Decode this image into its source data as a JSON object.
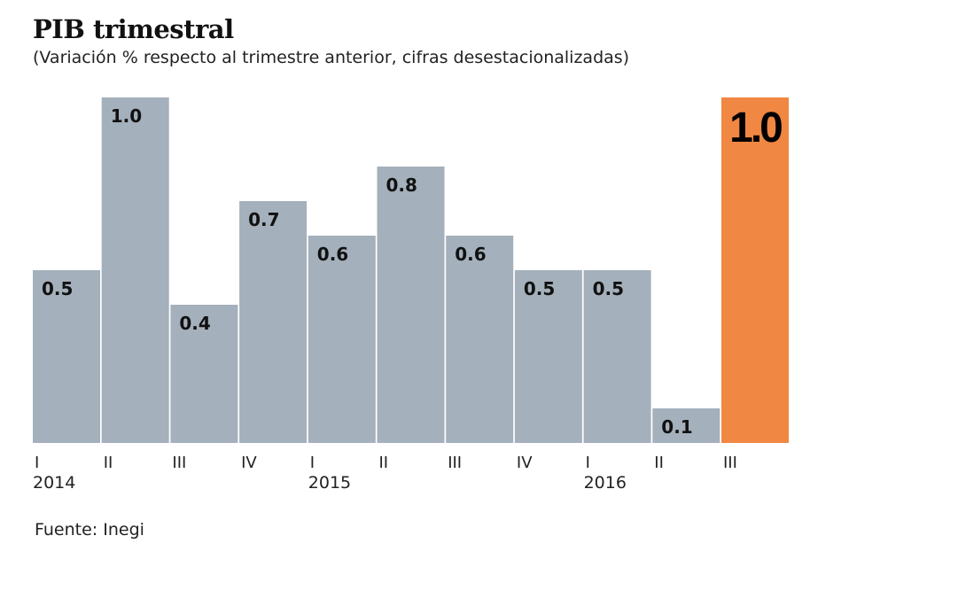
{
  "chart_data": {
    "type": "bar",
    "title": "PIB trimestral",
    "subtitle": "(Variación % respecto al trimestre anterior, cifras desestacionalizadas)",
    "categories": [
      "I",
      "II",
      "III",
      "IV",
      "I",
      "II",
      "III",
      "IV",
      "I",
      "II",
      "III"
    ],
    "year_labels": [
      {
        "index": 0,
        "label": "2014"
      },
      {
        "index": 4,
        "label": "2015"
      },
      {
        "index": 8,
        "label": "2016"
      }
    ],
    "values": [
      0.5,
      1.0,
      0.4,
      0.7,
      0.6,
      0.8,
      0.6,
      0.5,
      0.5,
      0.1,
      1.0
    ],
    "data_labels": [
      "0.5",
      "1.0",
      "0.4",
      "0.7",
      "0.6",
      "0.8",
      "0.6",
      "0.5",
      "0.5",
      "0.1",
      "1.0"
    ],
    "highlight_index": 10,
    "ylim": [
      0,
      1.0
    ],
    "grid": false,
    "colors": {
      "bar": "#a4b0bb",
      "highlight": "#f08743"
    },
    "source": "Fuente: Inegi"
  }
}
